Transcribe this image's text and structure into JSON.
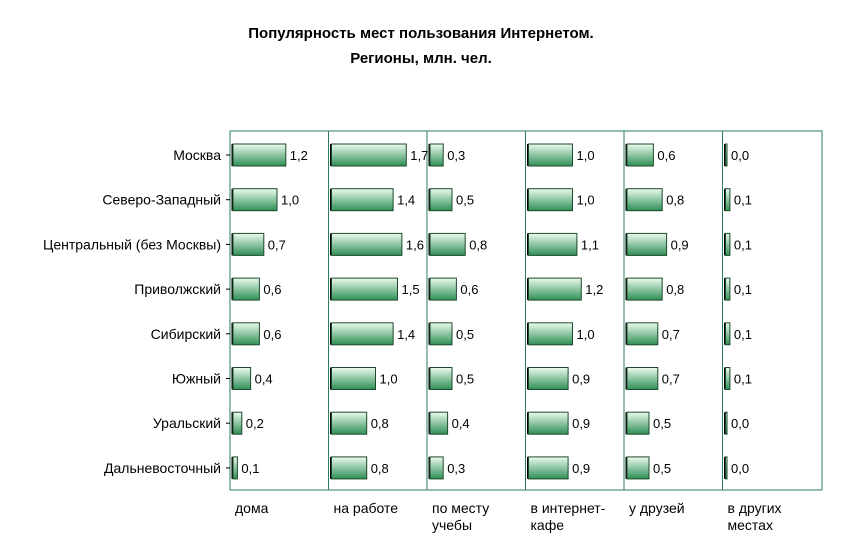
{
  "chart_data": {
    "type": "bar",
    "orientation": "horizontal",
    "layout": "small-multiples",
    "title": "Популярность мест пользования Интернетом.",
    "subtitle": "Регионы, млн. чел.",
    "categories": [
      "Москва",
      "Северо-Западный",
      "Центральный (без Москвы)",
      "Приволжский",
      "Сибирский",
      "Южный",
      "Уральский",
      "Дальневосточный"
    ],
    "series": [
      {
        "name": "дома",
        "name_lines": [
          "дома"
        ],
        "values": [
          1.2,
          1.0,
          0.7,
          0.6,
          0.6,
          0.4,
          0.2,
          0.1
        ],
        "labels": [
          "1,2",
          "1,0",
          "0,7",
          "0,6",
          "0,6",
          "0,4",
          "0,2",
          "0,1"
        ]
      },
      {
        "name": "на работе",
        "name_lines": [
          "на работе"
        ],
        "values": [
          1.7,
          1.4,
          1.6,
          1.5,
          1.4,
          1.0,
          0.8,
          0.8
        ],
        "labels": [
          "1,7",
          "1,4",
          "1,6",
          "1,5",
          "1,4",
          "1,0",
          "0,8",
          "0,8"
        ]
      },
      {
        "name": "по месту учебы",
        "name_lines": [
          "по месту",
          "учебы"
        ],
        "values": [
          0.3,
          0.5,
          0.8,
          0.6,
          0.5,
          0.5,
          0.4,
          0.3
        ],
        "labels": [
          "0,3",
          "0,5",
          "0,8",
          "0,6",
          "0,5",
          "0,5",
          "0,4",
          "0,3"
        ]
      },
      {
        "name": "в интернет-кафе",
        "name_lines": [
          "в интернет-",
          "кафе"
        ],
        "values": [
          1.0,
          1.0,
          1.1,
          1.2,
          1.0,
          0.9,
          0.9,
          0.9
        ],
        "labels": [
          "1,0",
          "1,0",
          "1,1",
          "1,2",
          "1,0",
          "0,9",
          "0,9",
          "0,9"
        ]
      },
      {
        "name": "у друзей",
        "name_lines": [
          "у друзей"
        ],
        "values": [
          0.6,
          0.8,
          0.9,
          0.8,
          0.7,
          0.7,
          0.5,
          0.5
        ],
        "labels": [
          "0,6",
          "0,8",
          "0,9",
          "0,8",
          "0,7",
          "0,7",
          "0,5",
          "0,5"
        ]
      },
      {
        "name": "в других местах",
        "name_lines": [
          "в других",
          "местах"
        ],
        "values": [
          0.0,
          0.1,
          0.1,
          0.1,
          0.1,
          0.1,
          0.0,
          0.0
        ],
        "labels": [
          "0,0",
          "0,1",
          "0,1",
          "0,1",
          "0,1",
          "0,1",
          "0,0",
          "0,0"
        ]
      }
    ],
    "xlim": [
      0,
      1.8
    ],
    "grid": false,
    "legend": "none",
    "colors": {
      "bar_light": "#ecfbef",
      "bar_dark": "#2f8f55",
      "bar_stroke": "#1d4a2c",
      "frame": "#2e7d62",
      "axis": "#000000"
    }
  }
}
